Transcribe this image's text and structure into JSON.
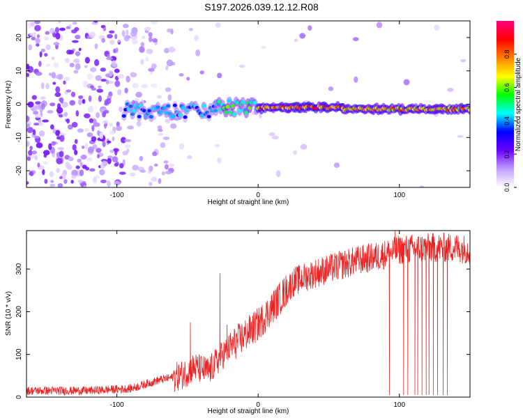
{
  "title": "S197.2026.039.12.12.R08",
  "chart_data": [
    {
      "type": "heatmap",
      "name": "spectrogram",
      "xlabel": "Height of straight line (km)",
      "ylabel": "Frequency (Hz)",
      "xlim": [
        -164,
        150
      ],
      "ylim": [
        -25,
        25
      ],
      "xticks": [
        -100,
        0,
        100
      ],
      "yticks": [
        -20,
        -10,
        0,
        10,
        20
      ],
      "ridge": {
        "description": "dominant spectral line near 0 Hz",
        "segments": [
          {
            "x_start": -95,
            "x_end": -30,
            "freq": -2,
            "amp": 0.45
          },
          {
            "x_start": -30,
            "x_end": 0,
            "freq": -1,
            "amp": 0.6
          },
          {
            "x_start": 0,
            "x_end": 60,
            "freq": -1,
            "amp": 0.9
          },
          {
            "x_start": 60,
            "x_end": 150,
            "freq": -1.5,
            "amp": 0.85
          }
        ]
      },
      "colorbar": {
        "label": "Normalized spectral amplitude",
        "range": [
          0,
          1
        ],
        "ticks": [
          "0.0",
          "0.2",
          "0.4",
          "0.6",
          "0.8"
        ],
        "stops": [
          "#ffffff",
          "#c0a0ff",
          "#6a00ff",
          "#0000ff",
          "#00ffff",
          "#00ff00",
          "#ffff00",
          "#ff8000",
          "#ff0000",
          "#ff0080"
        ]
      }
    },
    {
      "type": "line",
      "name": "snr",
      "xlabel": "Height of straight line (km)",
      "ylabel": "SNR (10 * v/v)",
      "xlim": [
        -164,
        150
      ],
      "ylim": [
        0,
        390
      ],
      "xticks": [
        -100,
        0,
        100
      ],
      "yticks": [
        0,
        100,
        200,
        300
      ],
      "color": "#ee2222",
      "trend": {
        "x": [
          -164,
          -120,
          -90,
          -70,
          -55,
          -45,
          -35,
          -25,
          -15,
          0,
          15,
          25,
          40,
          55,
          70,
          85,
          100,
          120,
          140,
          150
        ],
        "y": [
          15,
          15,
          20,
          40,
          50,
          70,
          60,
          100,
          130,
          170,
          230,
          270,
          290,
          305,
          320,
          330,
          345,
          350,
          350,
          345
        ]
      },
      "spikes": [
        {
          "x": -48,
          "y": 175
        },
        {
          "x": -27,
          "y": 290
        },
        {
          "x": -22,
          "y": 170
        },
        {
          "x": 97,
          "y": 390
        },
        {
          "x": 120,
          "y": 370
        }
      ],
      "dropouts": [
        93,
        103,
        106,
        111,
        113,
        116,
        119,
        121,
        124,
        127,
        131,
        134
      ]
    }
  ]
}
